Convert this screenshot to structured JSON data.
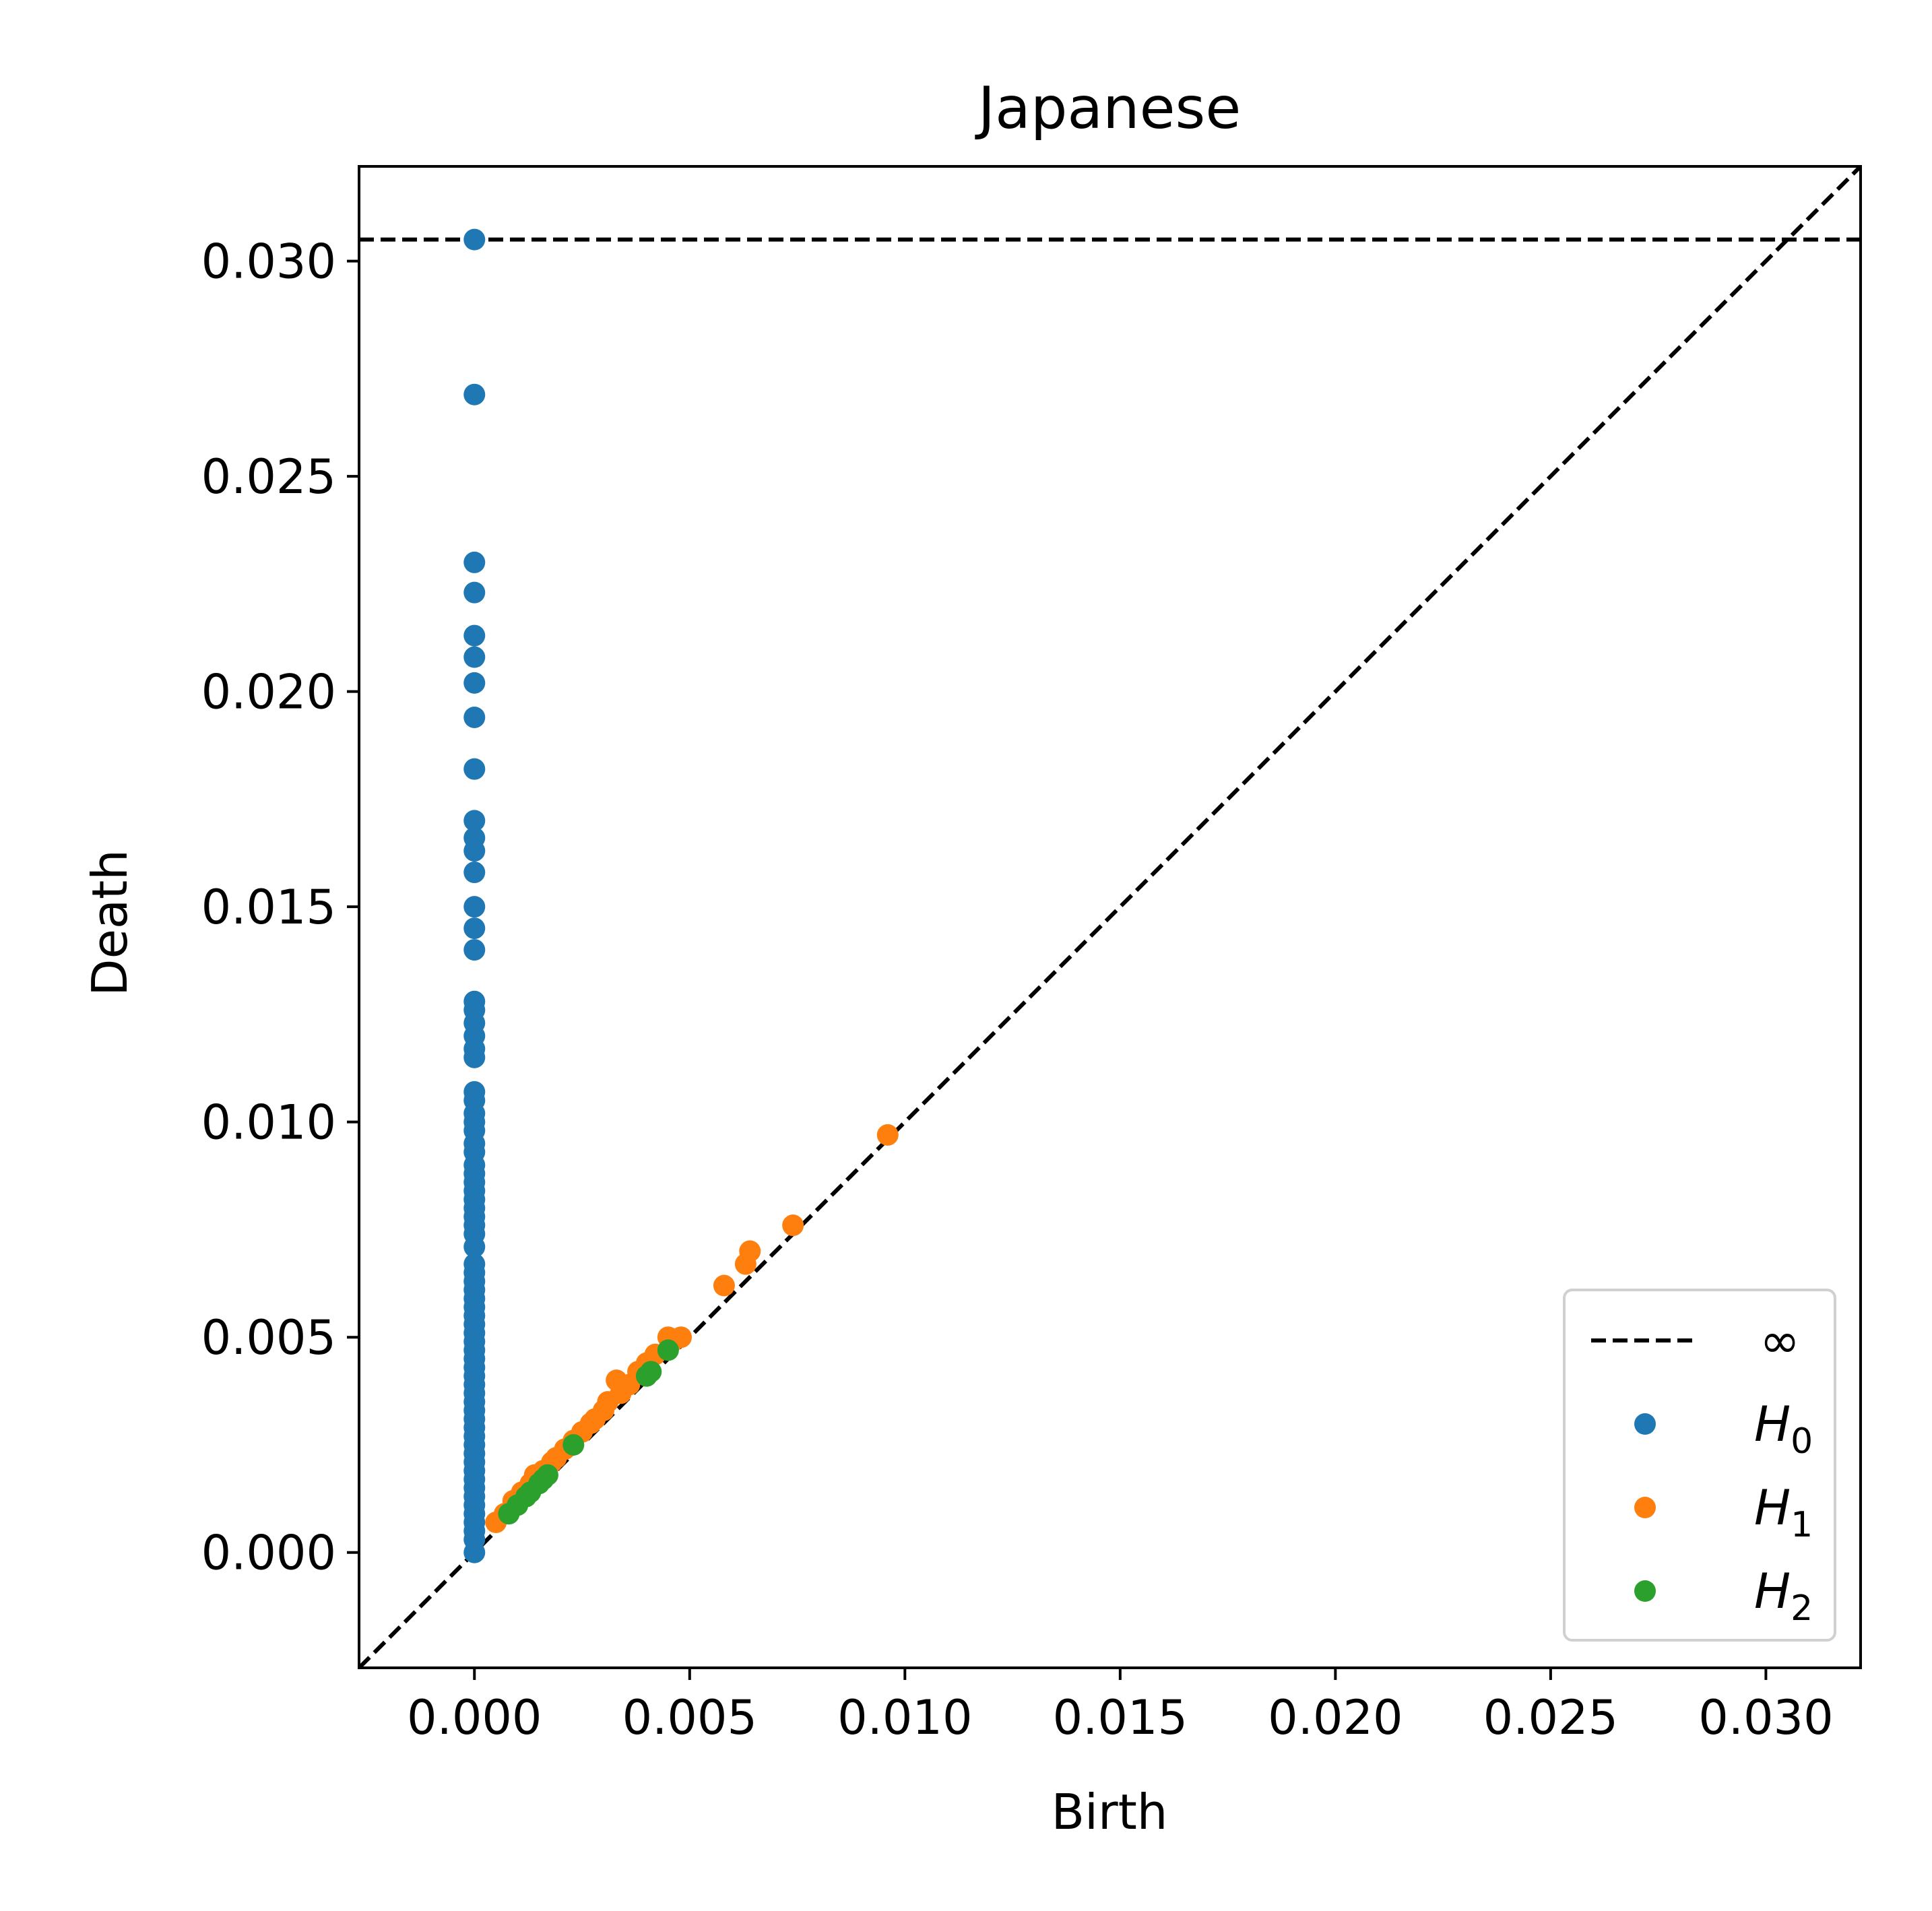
{
  "chart_data": {
    "type": "scatter",
    "title": "Japanese",
    "xlabel": "Birth",
    "ylabel": "Death",
    "xlim": [
      -0.00268,
      0.0322
    ],
    "ylim": [
      -0.00268,
      0.0322
    ],
    "xticks": [
      0.0,
      0.005,
      0.01,
      0.015,
      0.02,
      0.025,
      0.03
    ],
    "yticks": [
      0.0,
      0.005,
      0.01,
      0.015,
      0.02,
      0.025,
      0.03
    ],
    "xtick_labels": [
      "0.000",
      "0.005",
      "0.010",
      "0.015",
      "0.020",
      "0.025",
      "0.030"
    ],
    "ytick_labels": [
      "0.000",
      "0.005",
      "0.010",
      "0.015",
      "0.020",
      "0.025",
      "0.030"
    ],
    "grid": false,
    "legend_position": "lower-right",
    "infinity_line": {
      "label": "∞",
      "y": 0.0305,
      "color": "#000000"
    },
    "diagonal_line": true,
    "legend": [
      {
        "kind": "line",
        "label": "∞"
      },
      {
        "kind": "point",
        "base": "H",
        "sub": "0",
        "color": "#1f77b4"
      },
      {
        "kind": "point",
        "base": "H",
        "sub": "1",
        "color": "#ff7f0e"
      },
      {
        "kind": "point",
        "base": "H",
        "sub": "2",
        "color": "#2ca02c"
      }
    ],
    "series": [
      {
        "name": "H0",
        "color": "#1f77b4",
        "points": [
          [
            0,
            0.0305
          ],
          [
            0,
            0.0269
          ],
          [
            0,
            0.023
          ],
          [
            0,
            0.0223
          ],
          [
            0,
            0.0213
          ],
          [
            0,
            0.0208
          ],
          [
            0,
            0.0202
          ],
          [
            0,
            0.0194
          ],
          [
            0,
            0.0182
          ],
          [
            0,
            0.017
          ],
          [
            0,
            0.0166
          ],
          [
            0,
            0.0163
          ],
          [
            0,
            0.0158
          ],
          [
            0,
            0.015
          ],
          [
            0,
            0.0145
          ],
          [
            0,
            0.014
          ],
          [
            0,
            0.0128
          ],
          [
            0,
            0.0126
          ],
          [
            0,
            0.0123
          ],
          [
            0,
            0.012
          ],
          [
            0,
            0.0117
          ],
          [
            0,
            0.0115
          ],
          [
            0,
            0.0107
          ],
          [
            0,
            0.0105
          ],
          [
            0,
            0.0102
          ],
          [
            0,
            0.01
          ],
          [
            0,
            0.0098
          ],
          [
            0,
            0.0095
          ],
          [
            0,
            0.0093
          ],
          [
            0,
            0.009
          ],
          [
            0,
            0.0088
          ],
          [
            0,
            0.0086
          ],
          [
            0,
            0.0084
          ],
          [
            0,
            0.0082
          ],
          [
            0,
            0.008
          ],
          [
            0,
            0.0078
          ],
          [
            0,
            0.0076
          ],
          [
            0,
            0.0074
          ],
          [
            0,
            0.0071
          ],
          [
            0,
            0.0067
          ],
          [
            0,
            0.0065
          ],
          [
            0,
            0.0063
          ],
          [
            0,
            0.0061
          ],
          [
            0,
            0.0059
          ],
          [
            0,
            0.0057
          ],
          [
            0,
            0.0055
          ],
          [
            0,
            0.0053
          ],
          [
            0,
            0.0051
          ],
          [
            0,
            0.0049
          ],
          [
            0,
            0.0047
          ],
          [
            0,
            0.0045
          ],
          [
            0,
            0.0043
          ],
          [
            0,
            0.0041
          ],
          [
            0,
            0.0039
          ],
          [
            0,
            0.0037
          ],
          [
            0,
            0.0035
          ],
          [
            0,
            0.0033
          ],
          [
            0,
            0.0031
          ],
          [
            0,
            0.0029
          ],
          [
            0,
            0.0027
          ],
          [
            0,
            0.0025
          ],
          [
            0,
            0.0023
          ],
          [
            0,
            0.0021
          ],
          [
            0,
            0.0019
          ],
          [
            0,
            0.0017
          ],
          [
            0,
            0.0015
          ],
          [
            0,
            0.0013
          ],
          [
            0,
            0.0011
          ],
          [
            0,
            0.0009
          ],
          [
            0,
            0.0007
          ],
          [
            0,
            0.0005
          ],
          [
            0,
            0.0003
          ],
          [
            0,
            0.0
          ]
        ]
      },
      {
        "name": "H1",
        "color": "#ff7f0e",
        "points": [
          [
            0.0096,
            0.0097
          ],
          [
            0.0074,
            0.0076
          ],
          [
            0.0064,
            0.007
          ],
          [
            0.0063,
            0.0067
          ],
          [
            0.0058,
            0.0062
          ],
          [
            0.0048,
            0.005
          ],
          [
            0.0046,
            0.0049
          ],
          [
            0.0045,
            0.005
          ],
          [
            0.0042,
            0.0046
          ],
          [
            0.004,
            0.0044
          ],
          [
            0.0038,
            0.0042
          ],
          [
            0.0036,
            0.0039
          ],
          [
            0.0033,
            0.004
          ],
          [
            0.0034,
            0.0037
          ],
          [
            0.0031,
            0.0035
          ],
          [
            0.003,
            0.0033
          ],
          [
            0.0028,
            0.0031
          ],
          [
            0.0027,
            0.003
          ],
          [
            0.0025,
            0.0028
          ],
          [
            0.0023,
            0.0026
          ],
          [
            0.0021,
            0.0024
          ],
          [
            0.0019,
            0.0022
          ],
          [
            0.0018,
            0.0021
          ],
          [
            0.0016,
            0.0019
          ],
          [
            0.0014,
            0.0018
          ],
          [
            0.0013,
            0.0016
          ],
          [
            0.0011,
            0.0014
          ],
          [
            0.0009,
            0.0012
          ],
          [
            0.0007,
            0.0009
          ],
          [
            0.0005,
            0.0007
          ]
        ]
      },
      {
        "name": "H2",
        "color": "#2ca02c",
        "points": [
          [
            0.0045,
            0.0047
          ],
          [
            0.0041,
            0.0042
          ],
          [
            0.004,
            0.0041
          ],
          [
            0.0023,
            0.0025
          ],
          [
            0.0017,
            0.0018
          ],
          [
            0.0016,
            0.0017
          ],
          [
            0.0015,
            0.0016
          ],
          [
            0.0013,
            0.0014
          ],
          [
            0.0012,
            0.0013
          ],
          [
            0.001,
            0.0011
          ],
          [
            0.0008,
            0.0009
          ]
        ]
      }
    ]
  }
}
